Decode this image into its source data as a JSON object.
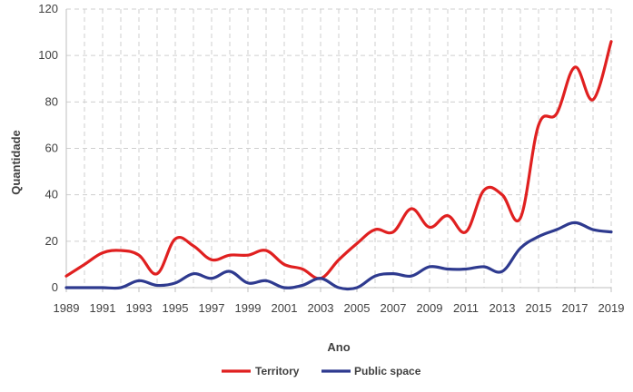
{
  "chart_data": {
    "type": "line",
    "title": "",
    "xlabel": "Ano",
    "ylabel": "Quantidade",
    "xlim": [
      1989,
      2019
    ],
    "ylim": [
      0,
      120
    ],
    "y_ticks": [
      0,
      20,
      40,
      60,
      80,
      100,
      120
    ],
    "x_ticks": [
      1989,
      1991,
      1993,
      1995,
      1997,
      1999,
      2001,
      2003,
      2005,
      2007,
      2009,
      2011,
      2013,
      2015,
      2017,
      2019
    ],
    "grid": true,
    "legend_position": "bottom",
    "x": [
      1989,
      1990,
      1991,
      1992,
      1993,
      1994,
      1995,
      1996,
      1997,
      1998,
      1999,
      2000,
      2001,
      2002,
      2003,
      2004,
      2005,
      2006,
      2007,
      2008,
      2009,
      2010,
      2011,
      2012,
      2013,
      2014,
      2015,
      2016,
      2017,
      2018,
      2019
    ],
    "series": [
      {
        "name": "Territory",
        "color": "#e02020",
        "values": [
          5,
          10,
          15,
          16,
          14,
          6,
          21,
          18,
          12,
          14,
          14,
          16,
          10,
          8,
          4,
          12,
          19,
          25,
          24,
          34,
          26,
          31,
          24,
          42,
          40,
          30,
          70,
          75,
          95,
          81,
          106
        ]
      },
      {
        "name": "Public space",
        "color": "#2e3a8f",
        "values": [
          0,
          0,
          0,
          0,
          3,
          1,
          2,
          6,
          4,
          7,
          2,
          3,
          0,
          1,
          4,
          0,
          0,
          5,
          6,
          5,
          9,
          8,
          8,
          9,
          7,
          17,
          22,
          25,
          28,
          25,
          24
        ]
      }
    ]
  }
}
